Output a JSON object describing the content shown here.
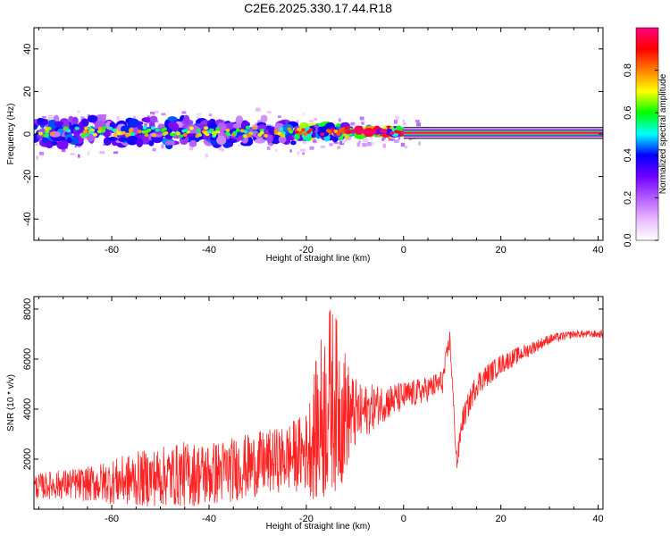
{
  "title": "C2E6.2025.330.17.44.R18",
  "chart_data": [
    {
      "type": "heatmap",
      "xlabel": "Height of straight line (km)",
      "ylabel": "Frequency (Hz)",
      "xlim": [
        -76,
        41
      ],
      "ylim": [
        -50,
        50
      ],
      "xticks": [
        -60,
        -40,
        -20,
        0,
        20,
        40
      ],
      "yticks": [
        -40,
        -20,
        0,
        20,
        40
      ],
      "colorbar": {
        "label": "Normalized spectral amplitude",
        "range": [
          0,
          1
        ],
        "ticks": [
          "0.0",
          "0.2",
          "0.4",
          "0.6",
          "0.8"
        ],
        "colors": [
          "#ffffff",
          "#e9b8ff",
          "#b25cff",
          "#7000ff",
          "#0000ff",
          "#00ffff",
          "#00ff00",
          "#ffff00",
          "#ff7f00",
          "#ff0000",
          "#ff0080"
        ]
      },
      "band_segments": [
        {
          "x0": -76,
          "x1": -22,
          "center_hz": 1,
          "half_width_hz": 7,
          "amplitude": 0.35
        },
        {
          "x0": -22,
          "x1": -12,
          "center_hz": 1,
          "half_width_hz": 4,
          "amplitude": 0.55
        },
        {
          "x0": -12,
          "x1": 0,
          "center_hz": 1,
          "half_width_hz": 2,
          "amplitude": 0.75
        },
        {
          "x0": 0,
          "x1": 41,
          "center_hz": 0.5,
          "half_width_hz": 1.5,
          "amplitude": 1.0
        }
      ]
    },
    {
      "type": "line",
      "xlabel": "Height of straight line (km)",
      "ylabel": "SNR (10 * v/v)",
      "xlim": [
        -76,
        41
      ],
      "ylim": [
        0,
        8500
      ],
      "xticks": [
        -60,
        -40,
        -20,
        0,
        20,
        40
      ],
      "yticks": [
        2000,
        4000,
        6000,
        8000
      ],
      "series": [
        {
          "name": "SNR",
          "color": "#ff2222",
          "x": [
            -76,
            -70,
            -65,
            -60,
            -55,
            -50,
            -45,
            -40,
            -35,
            -30,
            -25,
            -20,
            -17,
            -15,
            -13,
            -11,
            -9,
            -5,
            0,
            5,
            8,
            9.5,
            10,
            10.5,
            11,
            12,
            15,
            20,
            25,
            30,
            35,
            41
          ],
          "y": [
            900,
            1000,
            1000,
            1100,
            1200,
            1300,
            1400,
            1400,
            1600,
            1800,
            2000,
            2300,
            3500,
            4500,
            4000,
            3800,
            3800,
            4200,
            4500,
            4800,
            5100,
            6800,
            5200,
            3200,
            1800,
            3500,
            5000,
            5800,
            6300,
            6800,
            7000,
            7000
          ],
          "amplitude": [
            500,
            600,
            700,
            900,
            1100,
            1200,
            1300,
            1300,
            1300,
            1300,
            1300,
            1600,
            3500,
            3800,
            3300,
            1800,
            1200,
            800,
            600,
            500,
            500,
            400,
            400,
            400,
            400,
            500,
            500,
            400,
            300,
            200,
            150,
            150
          ]
        }
      ]
    }
  ]
}
